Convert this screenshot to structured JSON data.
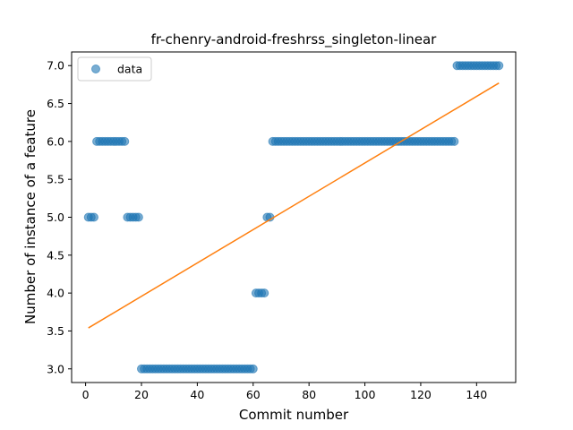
{
  "chart_data": {
    "type": "scatter",
    "title": "fr-chenry-android-freshrss_singleton-linear",
    "xlabel": "Commit number",
    "ylabel": "Number of instance of a feature",
    "xlim": [
      -5,
      154
    ],
    "ylim": [
      2.82,
      7.18
    ],
    "xticks": [
      0,
      20,
      40,
      60,
      80,
      100,
      120,
      140
    ],
    "yticks": [
      3.0,
      3.5,
      4.0,
      4.5,
      5.0,
      5.5,
      6.0,
      6.5,
      7.0
    ],
    "ytick_labels": [
      "3.0",
      "3.5",
      "4.0",
      "4.5",
      "5.0",
      "5.5",
      "6.0",
      "6.5",
      "7.0"
    ],
    "legend": {
      "placement": "top-left",
      "entries": [
        "data"
      ]
    },
    "colors": {
      "scatter": "#1f77b4",
      "fit": "#ff7f0e"
    },
    "series": [
      {
        "name": "data",
        "kind": "scatter",
        "segments": [
          {
            "x_start": 1,
            "x_end": 3,
            "y": 5
          },
          {
            "x_start": 4,
            "x_end": 14,
            "y": 6
          },
          {
            "x_start": 15,
            "x_end": 19,
            "y": 5
          },
          {
            "x_start": 20,
            "x_end": 60,
            "y": 3
          },
          {
            "x_start": 61,
            "x_end": 64,
            "y": 4
          },
          {
            "x_start": 65,
            "x_end": 66,
            "y": 5
          },
          {
            "x_start": 67,
            "x_end": 132,
            "y": 6
          },
          {
            "x_start": 133,
            "x_end": 148,
            "y": 7
          }
        ]
      },
      {
        "kind": "line",
        "points": [
          [
            1,
            3.54
          ],
          [
            148,
            6.77
          ]
        ]
      }
    ]
  }
}
